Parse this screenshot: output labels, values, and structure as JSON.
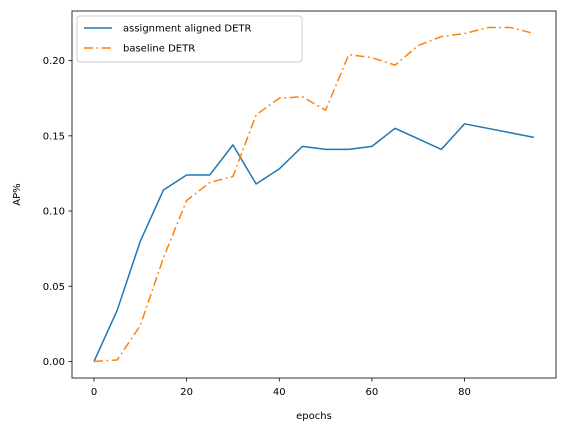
{
  "chart_data": {
    "type": "line",
    "xlabel": "epochs",
    "ylabel": "AP%",
    "xlim": [
      -4.75,
      99.75
    ],
    "ylim": [
      -0.011,
      0.233
    ],
    "xticks": [
      0,
      20,
      40,
      60,
      80
    ],
    "xtick_labels": [
      "0",
      "20",
      "40",
      "60",
      "80"
    ],
    "yticks": [
      0.0,
      0.05,
      0.1,
      0.15,
      0.2
    ],
    "ytick_labels": [
      "0.00",
      "0.05",
      "0.10",
      "0.15",
      "0.20"
    ],
    "grid": false,
    "legend_position": "top-left",
    "series": [
      {
        "name": "assignment aligned DETR",
        "color": "#1f77b4",
        "linestyle": "solid",
        "x": [
          0,
          5,
          10,
          15,
          20,
          25,
          30,
          35,
          40,
          45,
          50,
          55,
          60,
          65,
          70,
          75,
          80,
          85,
          90,
          95
        ],
        "y": [
          0.0,
          0.034,
          0.08,
          0.114,
          0.124,
          0.124,
          0.144,
          0.118,
          0.128,
          0.143,
          0.141,
          0.141,
          0.143,
          0.155,
          0.148,
          0.141,
          0.158,
          0.155,
          0.152,
          0.149
        ]
      },
      {
        "name": "baseline DETR",
        "color": "#ff7f0e",
        "linestyle": "dashdot",
        "x": [
          0,
          5,
          10,
          15,
          20,
          25,
          30,
          35,
          40,
          45,
          50,
          55,
          60,
          65,
          70,
          75,
          80,
          85,
          90,
          95
        ],
        "y": [
          0.0,
          0.001,
          0.024,
          0.069,
          0.107,
          0.119,
          0.123,
          0.164,
          0.175,
          0.176,
          0.167,
          0.204,
          0.202,
          0.197,
          0.21,
          0.216,
          0.218,
          0.222,
          0.222,
          0.218
        ]
      }
    ]
  }
}
